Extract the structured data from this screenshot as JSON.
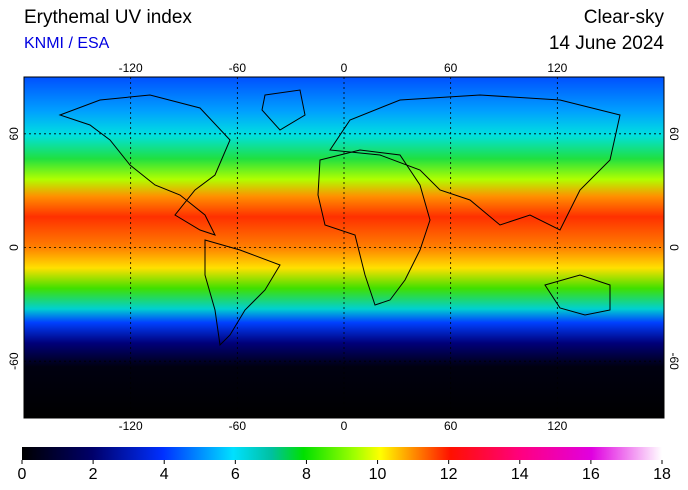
{
  "header": {
    "title": "Erythemal UV index",
    "source": "KNMI / ESA",
    "condition": "Clear-sky",
    "date": "14 June 2024"
  },
  "map": {
    "lon_lim": [
      -180,
      180
    ],
    "lat_lim": [
      -90,
      90
    ],
    "lon_ticks": [
      -120,
      -60,
      0,
      60,
      120
    ],
    "lat_ticks": [
      60,
      0,
      -60
    ]
  },
  "colorbar": {
    "lim": [
      0,
      18
    ],
    "ticks": [
      0,
      2,
      4,
      6,
      8,
      10,
      12,
      14,
      16,
      18
    ]
  }
}
